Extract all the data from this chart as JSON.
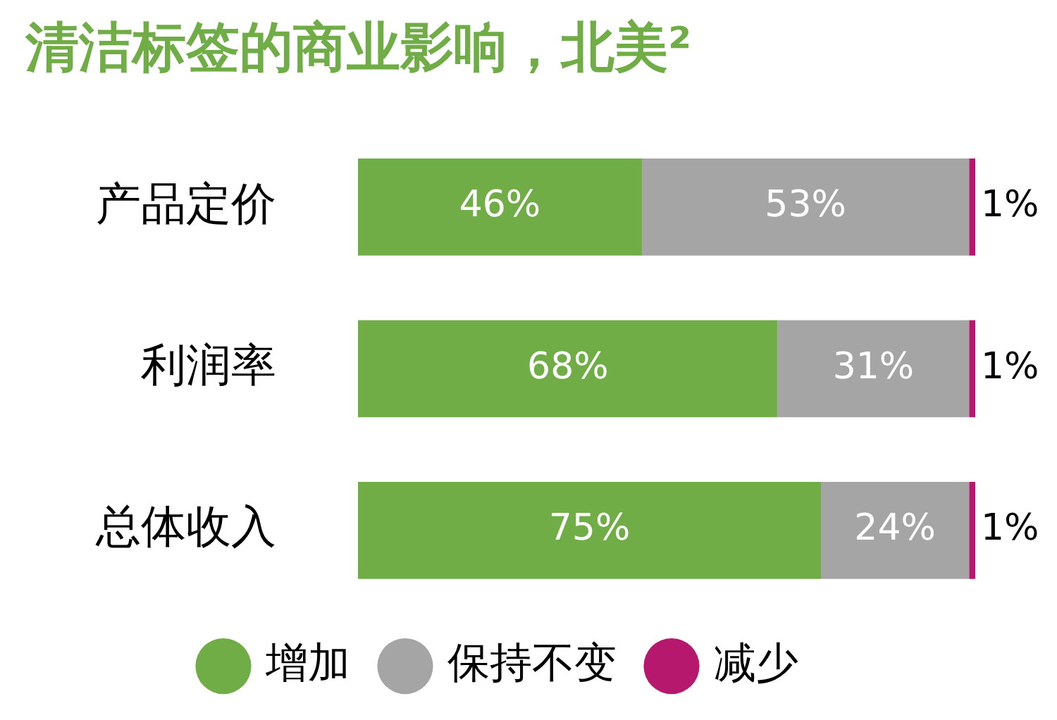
{
  "chart_data": {
    "type": "bar",
    "orientation": "horizontal",
    "stacked": true,
    "title": "清洁标签的商业影响，北美²",
    "categories": [
      "产品定价",
      "利润率",
      "总体收入"
    ],
    "series": [
      {
        "name": "增加",
        "color": "#70ad47",
        "values": [
          46,
          68,
          75
        ],
        "value_labels": [
          "46%",
          "68%",
          "75%"
        ]
      },
      {
        "name": "保持不变",
        "color": "#a5a5a5",
        "values": [
          53,
          31,
          24
        ],
        "value_labels": [
          "53%",
          "31%",
          "24%"
        ]
      },
      {
        "name": "减少",
        "color": "#b5186d",
        "values": [
          1,
          1,
          1
        ],
        "value_labels": [
          "1%",
          "1%",
          "1%"
        ]
      }
    ],
    "legend": "bottom"
  }
}
